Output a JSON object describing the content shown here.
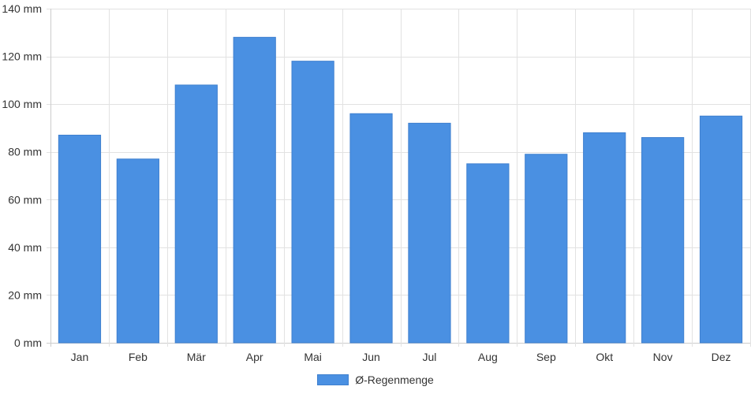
{
  "chart_data": {
    "type": "bar",
    "categories": [
      "Jan",
      "Feb",
      "Mär",
      "Apr",
      "Mai",
      "Jun",
      "Jul",
      "Aug",
      "Sep",
      "Okt",
      "Nov",
      "Dez"
    ],
    "series": [
      {
        "name": "Ø-Regenmenge",
        "values": [
          87,
          77,
          108,
          128,
          118,
          96,
          92,
          75,
          79,
          88,
          86,
          95
        ]
      }
    ],
    "y_ticks": [
      "0 mm",
      "20 mm",
      "40 mm",
      "60 mm",
      "80 mm",
      "100 mm",
      "120 mm",
      "140 mm"
    ],
    "ylim": [
      0,
      140
    ],
    "y_unit": "mm",
    "grid": true,
    "legend": "bottom-center",
    "colors": {
      "bar": "#4a90e2",
      "bar_border": "#3f80cf",
      "grid": "#e2e2e2",
      "axis": "#cccccc"
    }
  }
}
